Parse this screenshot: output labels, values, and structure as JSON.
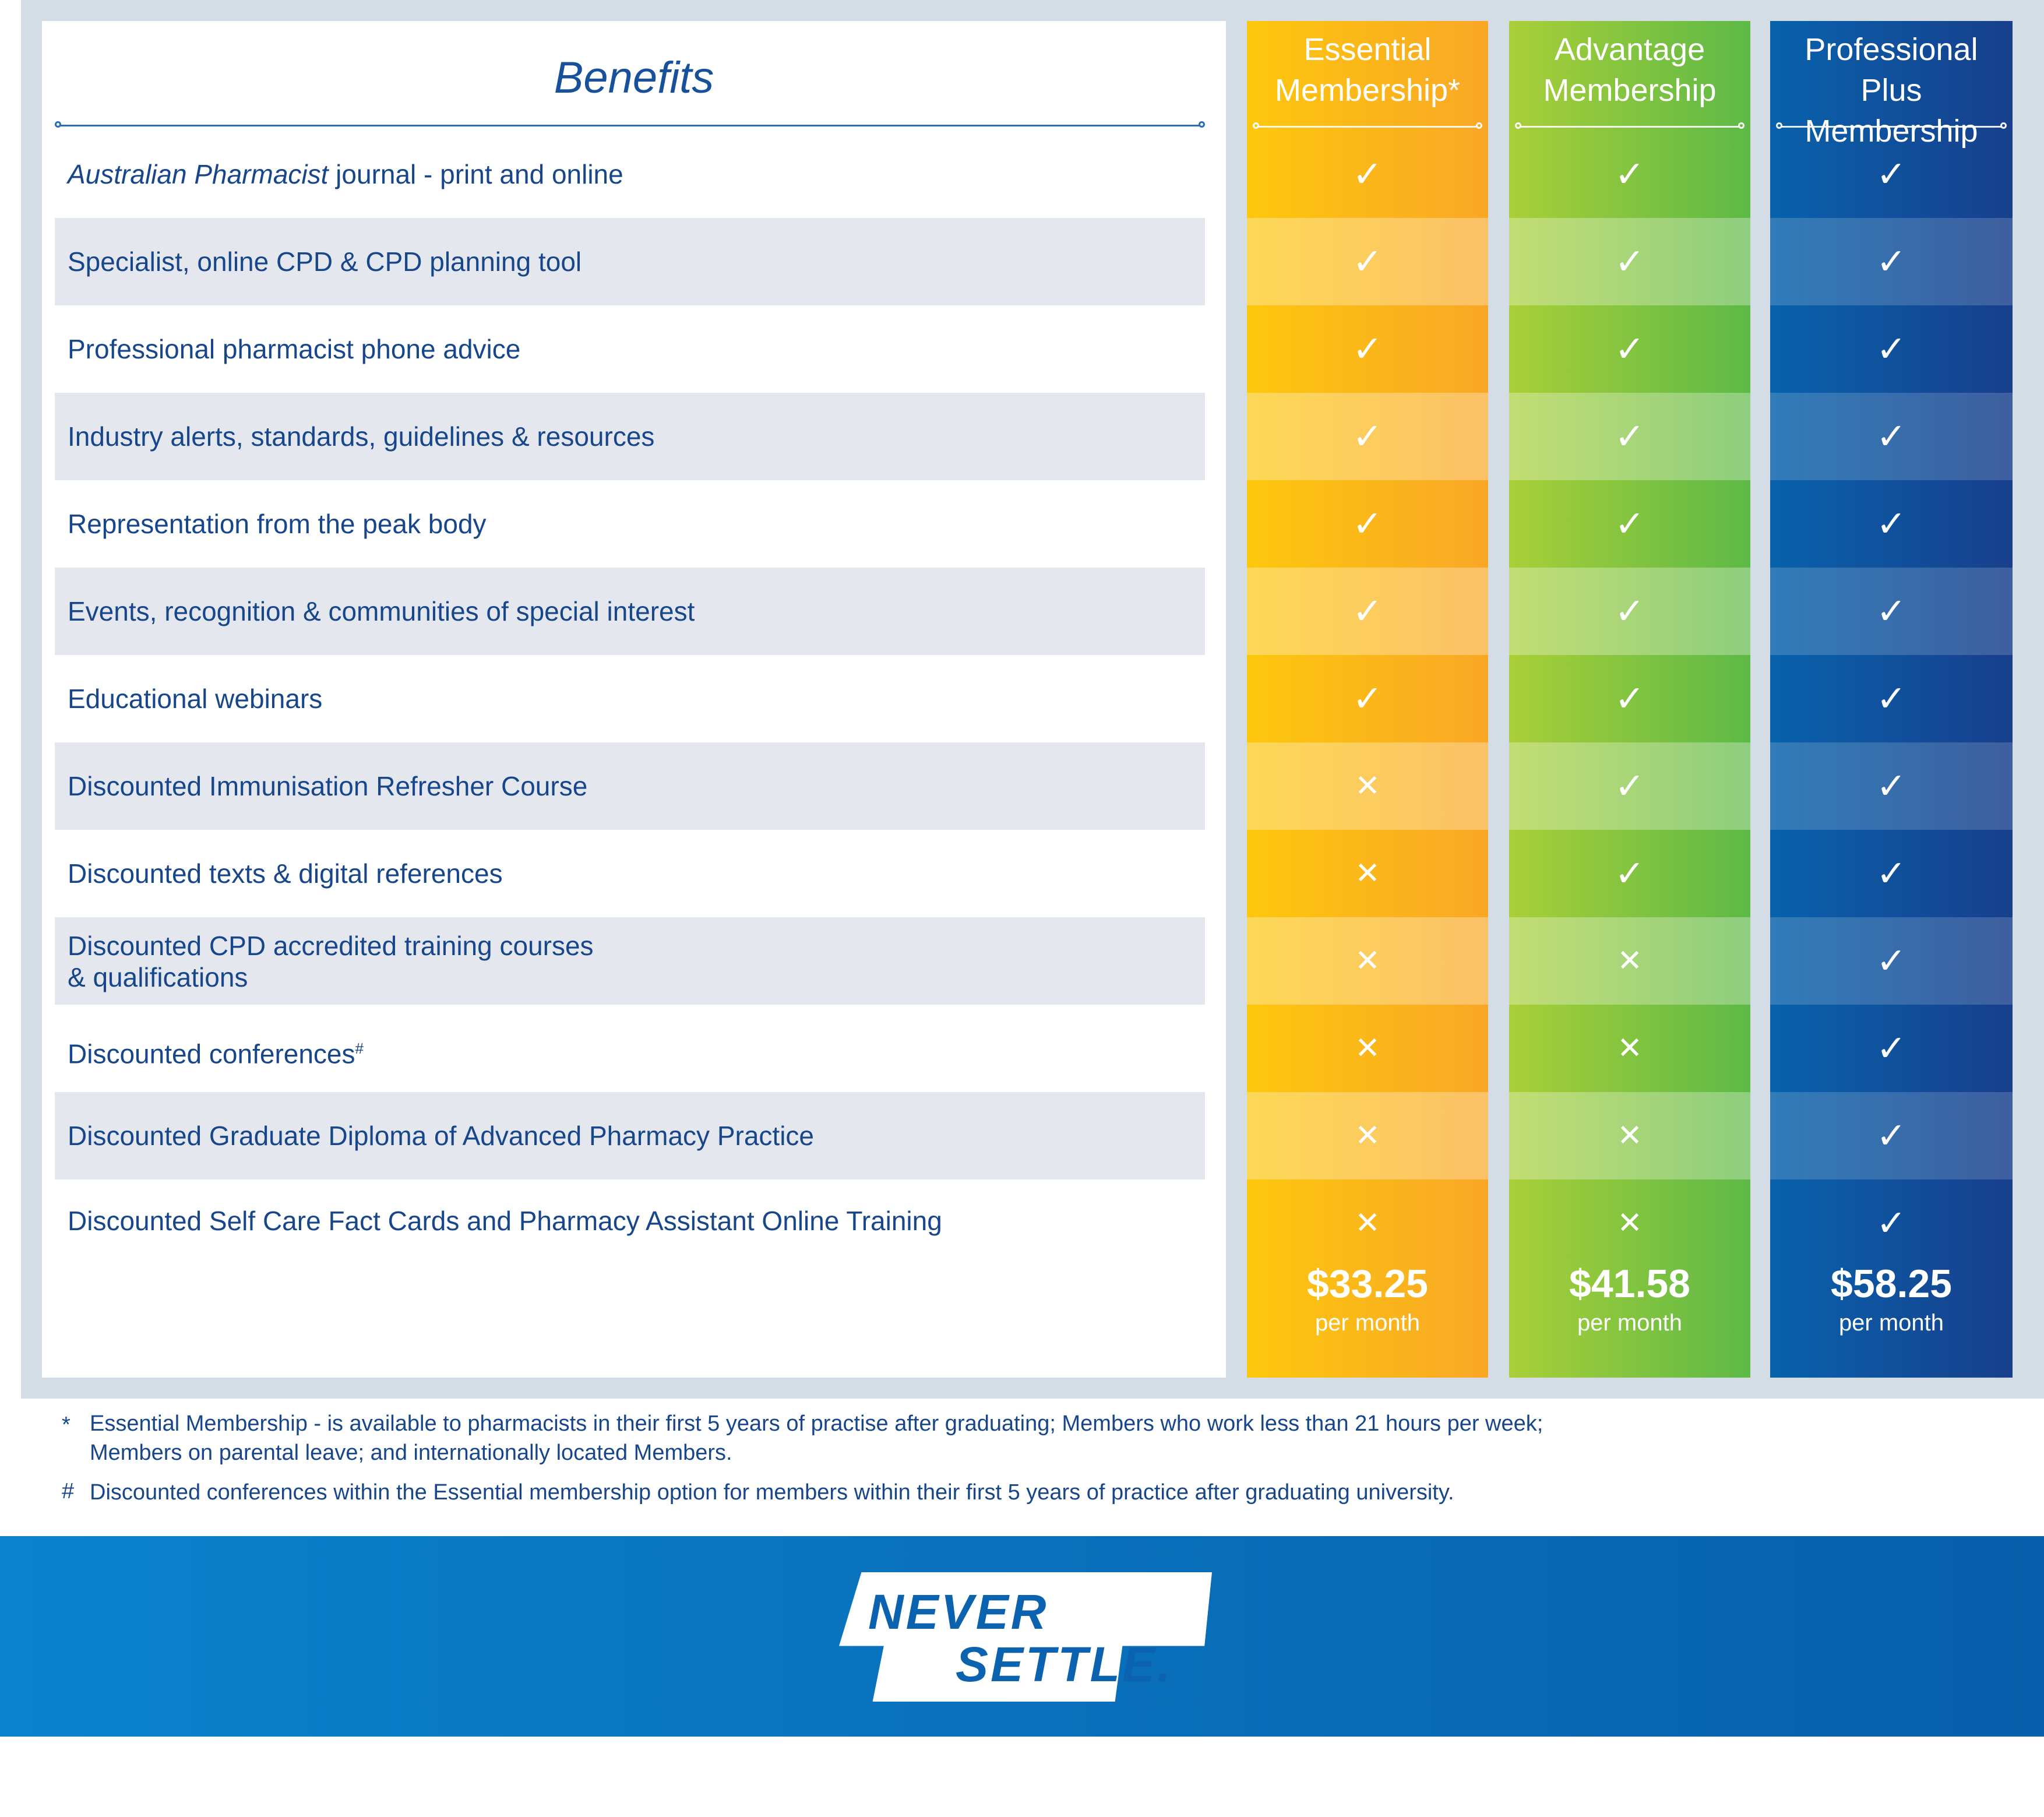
{
  "benefits_heading": "Benefits",
  "columns": [
    {
      "key": "essential",
      "title_line1": "Essential",
      "title_line2": "Membership*",
      "price": "$33.25",
      "per": "per month"
    },
    {
      "key": "advantage",
      "title_line1": "Advantage",
      "title_line2": "Membership",
      "price": "$41.58",
      "per": "per month"
    },
    {
      "key": "professional_plus",
      "title_line1": "Professional Plus",
      "title_line2": "Membership",
      "price": "$58.25",
      "per": "per month"
    }
  ],
  "rows": [
    {
      "label_italic": "Australian Pharmacist",
      "label": " journal - print and online",
      "essential": "✓",
      "advantage": "✓",
      "professional_plus": "✓"
    },
    {
      "label": "Specialist, online CPD & CPD planning tool",
      "essential": "✓",
      "advantage": "✓",
      "professional_plus": "✓"
    },
    {
      "label": "Professional pharmacist phone advice",
      "essential": "✓",
      "advantage": "✓",
      "professional_plus": "✓"
    },
    {
      "label": "Industry alerts, standards, guidelines & resources",
      "essential": "✓",
      "advantage": "✓",
      "professional_plus": "✓"
    },
    {
      "label": "Representation from the peak body",
      "essential": "✓",
      "advantage": "✓",
      "professional_plus": "✓"
    },
    {
      "label": "Events, recognition & communities of special interest",
      "essential": "✓",
      "advantage": "✓",
      "professional_plus": "✓"
    },
    {
      "label": "Educational webinars",
      "essential": "✓",
      "advantage": "✓",
      "professional_plus": "✓"
    },
    {
      "label": "Discounted Immunisation Refresher Course",
      "essential": "✕",
      "advantage": "✓",
      "professional_plus": "✓"
    },
    {
      "label": "Discounted texts & digital references",
      "essential": "✕",
      "advantage": "✓",
      "professional_plus": "✓"
    },
    {
      "label": "Discounted CPD accredited training courses",
      "label_line2": "& qualifications",
      "essential": "✕",
      "advantage": "✕",
      "professional_plus": "✓"
    },
    {
      "label": "Discounted conferences",
      "label_sup": "#",
      "essential": "✕",
      "advantage": "✕",
      "professional_plus": "✓"
    },
    {
      "label": "Discounted Graduate Diploma of Advanced Pharmacy Practice",
      "essential": "✕",
      "advantage": "✕",
      "professional_plus": "✓"
    },
    {
      "label": "Discounted Self Care Fact Cards and Pharmacy Assistant Online Training",
      "essential": "✕",
      "advantage": "✕",
      "professional_plus": "✓"
    }
  ],
  "footnotes": {
    "star_symbol": "*",
    "star_line1": "Essential Membership - is available to pharmacists in their first 5 years of practise after graduating; Members who work less than 21 hours per week;",
    "star_line2": "Members on parental leave; and internationally located Members.",
    "hash_symbol": "#",
    "hash_text": "Discounted conferences within the Essential membership option for members within their first 5 years of practice after graduating university."
  },
  "banner": {
    "line1": "NEVER",
    "line2": "SETTLE."
  }
}
